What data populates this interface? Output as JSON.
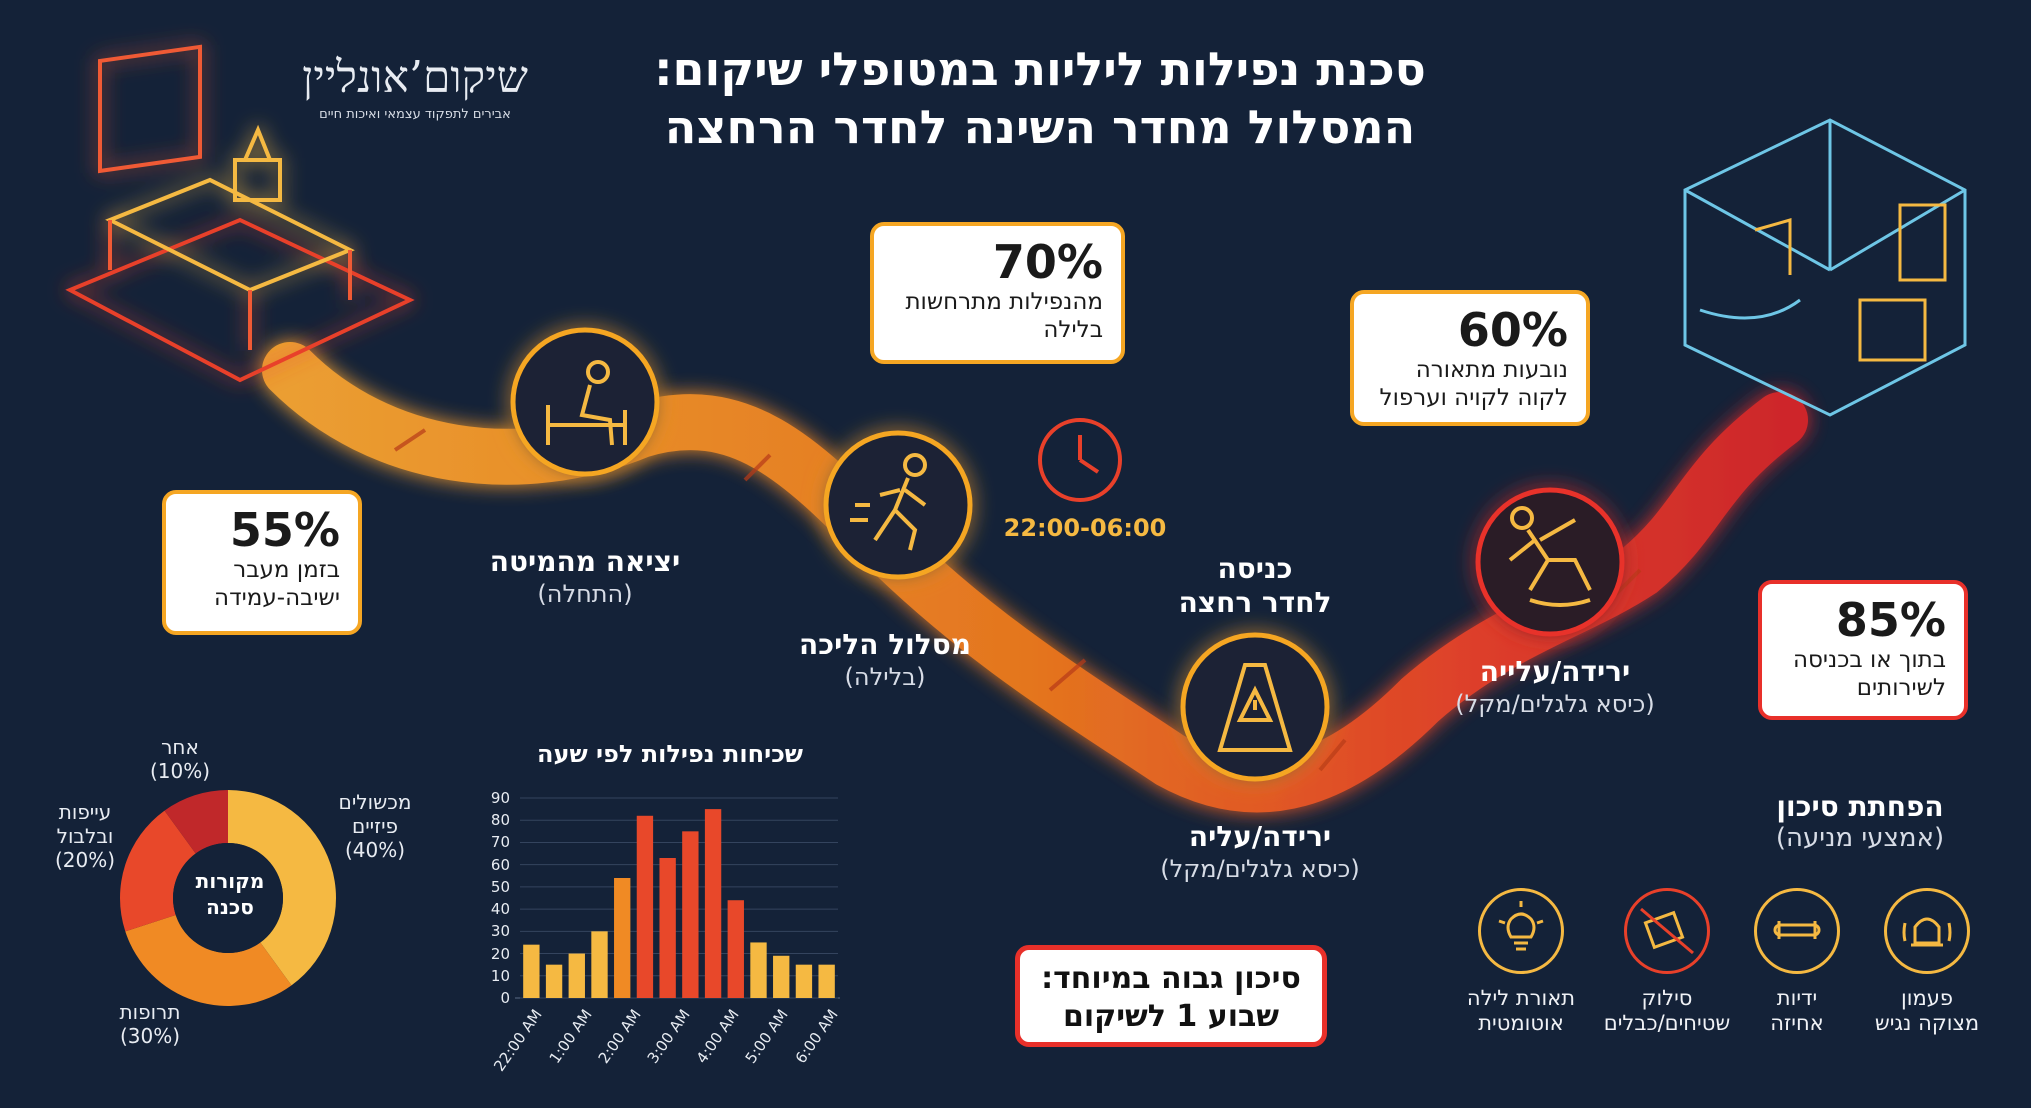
{
  "header": {
    "title_line1": "סכנת נפילות ליליות במטופלי שיקום:",
    "title_line2": "המסלול מחדר השינה לחדר הרחצה"
  },
  "logo": {
    "name": "שיקום’אונליין",
    "tagline": "אבירים לתפקוד עצמאי ואיכות חיים"
  },
  "stages": {
    "exit_bed": {
      "main": "יציאה מהמיטה",
      "sub": "(התחלה)",
      "icon": "person-sitting-bed-icon"
    },
    "walk_path": {
      "main": "מסלול הליכה",
      "sub": "(בלילה)",
      "icon": "person-walking-icon"
    },
    "enter_bathroom": {
      "main": "כניסה",
      "main2": "לחדר רחצה",
      "icon": "wet-floor-sign-icon"
    },
    "down_up_low": {
      "main": "ירידה/עליה",
      "sub": "(כיסא גלגלים/מקל)"
    },
    "down_up_high": {
      "main": "ירידה/עלייה",
      "sub": "(כיסא גלגלים/מקל)",
      "icon": "person-slipping-icon"
    }
  },
  "bubbles": {
    "b55": {
      "pct": "55%",
      "line1": "בזמן מעבר",
      "line2": "ישיבה-עמידה"
    },
    "b70": {
      "pct": "70%",
      "line1": "מהנפילות מתרחשות",
      "line2": "בלילה"
    },
    "b60": {
      "pct": "60%",
      "line1": "נובעות מתאורה",
      "line2": "לקוה לקויה וערפול"
    },
    "b85": {
      "pct": "85%",
      "line1": "בתוך או בכניסה",
      "line2": "לשירותים"
    }
  },
  "time_range": "22:00-06:00",
  "warning": {
    "line1": "סיכון גבוה במיוחד:",
    "line2": "שבוע 1 לשיקום"
  },
  "donut": {
    "center_line1": "מקורות",
    "center_line2": "סכנה",
    "slices": [
      {
        "label1": "מכשולים",
        "label2": "פיזיים",
        "label3": "(40%)",
        "value": 40,
        "color": "#f5b942"
      },
      {
        "label1": "תרופות",
        "label2": "(30%)",
        "label3": "",
        "value": 30,
        "color": "#f08a24"
      },
      {
        "label1": "עייפות",
        "label2": "ובלבול",
        "label3": "(20%)",
        "value": 20,
        "color": "#e8482a"
      },
      {
        "label1": "אחר",
        "label2": "(10%)",
        "label3": "",
        "value": 10,
        "color": "#c0282a"
      }
    ]
  },
  "chart_data": {
    "type": "bar",
    "title": "שכיחות נפילות לפי שעה",
    "ylim": [
      0,
      90
    ],
    "yticks": [
      "0",
      "10",
      "20",
      "30",
      "40",
      "50",
      "60",
      "70",
      "80",
      "90"
    ],
    "xticks": [
      "22:00 AM",
      "1:00 AM",
      "2:00 AM",
      "3:00 AM",
      "4:00 AM",
      "5:00 AM",
      "6:00 AM"
    ],
    "values": [
      24,
      15,
      20,
      30,
      54,
      82,
      63,
      75,
      85,
      44,
      25,
      19,
      15,
      15
    ],
    "colors": [
      "#f5b942",
      "#f5b942",
      "#f5b942",
      "#f5b942",
      "#f08a24",
      "#e8482a",
      "#e8482a",
      "#e8482a",
      "#e8482a",
      "#e8482a",
      "#f5b942",
      "#f5b942",
      "#f5b942",
      "#f5b942"
    ]
  },
  "prevention": {
    "title": "הפחתת סיכון",
    "subtitle": "(אמצעי מניעה)",
    "items": [
      {
        "line1": "פעמון",
        "line2": "מצוקה נגיש",
        "icon": "alarm-bell-icon"
      },
      {
        "line1": "ידיות",
        "line2": "אחיזה",
        "icon": "grab-bar-icon"
      },
      {
        "line1": "סילוק",
        "line2": "שטיחים/כבלים",
        "icon": "no-rugs-icon"
      },
      {
        "line1": "תאורת לילה",
        "line2": "אוטומטית",
        "icon": "lightbulb-icon"
      }
    ]
  }
}
